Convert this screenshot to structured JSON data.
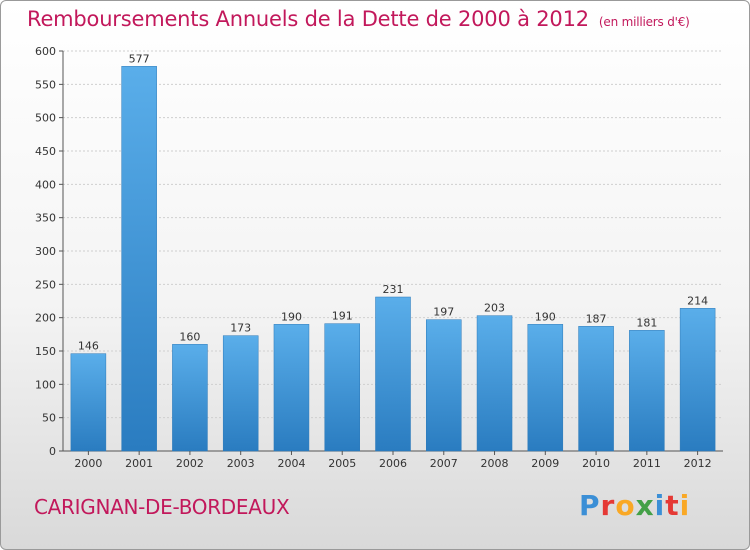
{
  "header": {
    "title": "Remboursements Annuels de la Dette de 2000 à 2012",
    "unit": "(en milliers d'€)"
  },
  "footer": {
    "commune": "CARIGNAN-DE-BORDEAUX",
    "logo_text": "Proxiti",
    "logo_colors": [
      "#3b8fd6",
      "#e53935",
      "#f9a825",
      "#43a047",
      "#3b8fd6",
      "#e53935",
      "#f9a825"
    ]
  },
  "chart_data": {
    "type": "bar",
    "categories": [
      "2000",
      "2001",
      "2002",
      "2003",
      "2004",
      "2005",
      "2006",
      "2007",
      "2008",
      "2009",
      "2010",
      "2011",
      "2012"
    ],
    "values": [
      146,
      577,
      160,
      173,
      190,
      191,
      231,
      197,
      203,
      190,
      187,
      181,
      214
    ],
    "data_labels": [
      "146",
      "577",
      "160",
      "173",
      "190",
      "191",
      "231",
      "197",
      "203",
      "190",
      "187",
      "181",
      "214"
    ],
    "yticks": [
      "0",
      "50",
      "100",
      "150",
      "200",
      "250",
      "300",
      "350",
      "400",
      "450",
      "500",
      "550",
      "600"
    ],
    "ylim": [
      0,
      600
    ],
    "grid": true,
    "bar_color": "#3d93d8"
  }
}
